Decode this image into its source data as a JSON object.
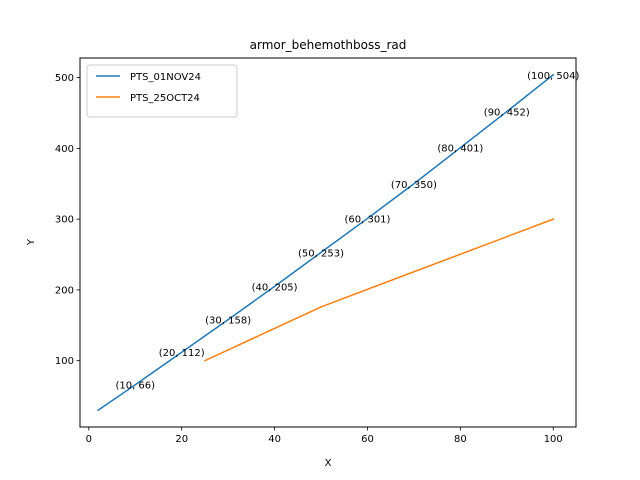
{
  "chart_data": {
    "type": "line",
    "title": "armor_behemothboss_rad",
    "xlabel": "X",
    "ylabel": "Y",
    "xlim": [
      -1.9,
      104.9
    ],
    "ylim": [
      6.3,
      527.7
    ],
    "xticks": [
      0,
      20,
      40,
      60,
      80,
      100
    ],
    "yticks": [
      100,
      200,
      300,
      400,
      500
    ],
    "grid": false,
    "legend_position": "upper left",
    "series": [
      {
        "name": "PTS_01NOV24",
        "color": "#1f77b4",
        "x": [
          2,
          10,
          20,
          30,
          40,
          50,
          60,
          70,
          80,
          90,
          100
        ],
        "y": [
          30,
          66,
          112,
          158,
          205,
          253,
          301,
          350,
          401,
          452,
          504
        ]
      },
      {
        "name": "PTS_25OCT24",
        "color": "#ff7f0e",
        "x": [
          25,
          50,
          100
        ],
        "y": [
          100,
          176,
          300
        ]
      }
    ],
    "annotations": [
      {
        "x": 10,
        "y": 66,
        "text": "(10, 66)"
      },
      {
        "x": 20,
        "y": 112,
        "text": "(20, 112)"
      },
      {
        "x": 30,
        "y": 158,
        "text": "(30, 158)"
      },
      {
        "x": 40,
        "y": 205,
        "text": "(40, 205)"
      },
      {
        "x": 50,
        "y": 253,
        "text": "(50, 253)"
      },
      {
        "x": 60,
        "y": 301,
        "text": "(60, 301)"
      },
      {
        "x": 70,
        "y": 350,
        "text": "(70, 350)"
      },
      {
        "x": 80,
        "y": 401,
        "text": "(80, 401)"
      },
      {
        "x": 90,
        "y": 452,
        "text": "(90, 452)"
      },
      {
        "x": 100,
        "y": 504,
        "text": "(100, 504)"
      }
    ]
  }
}
